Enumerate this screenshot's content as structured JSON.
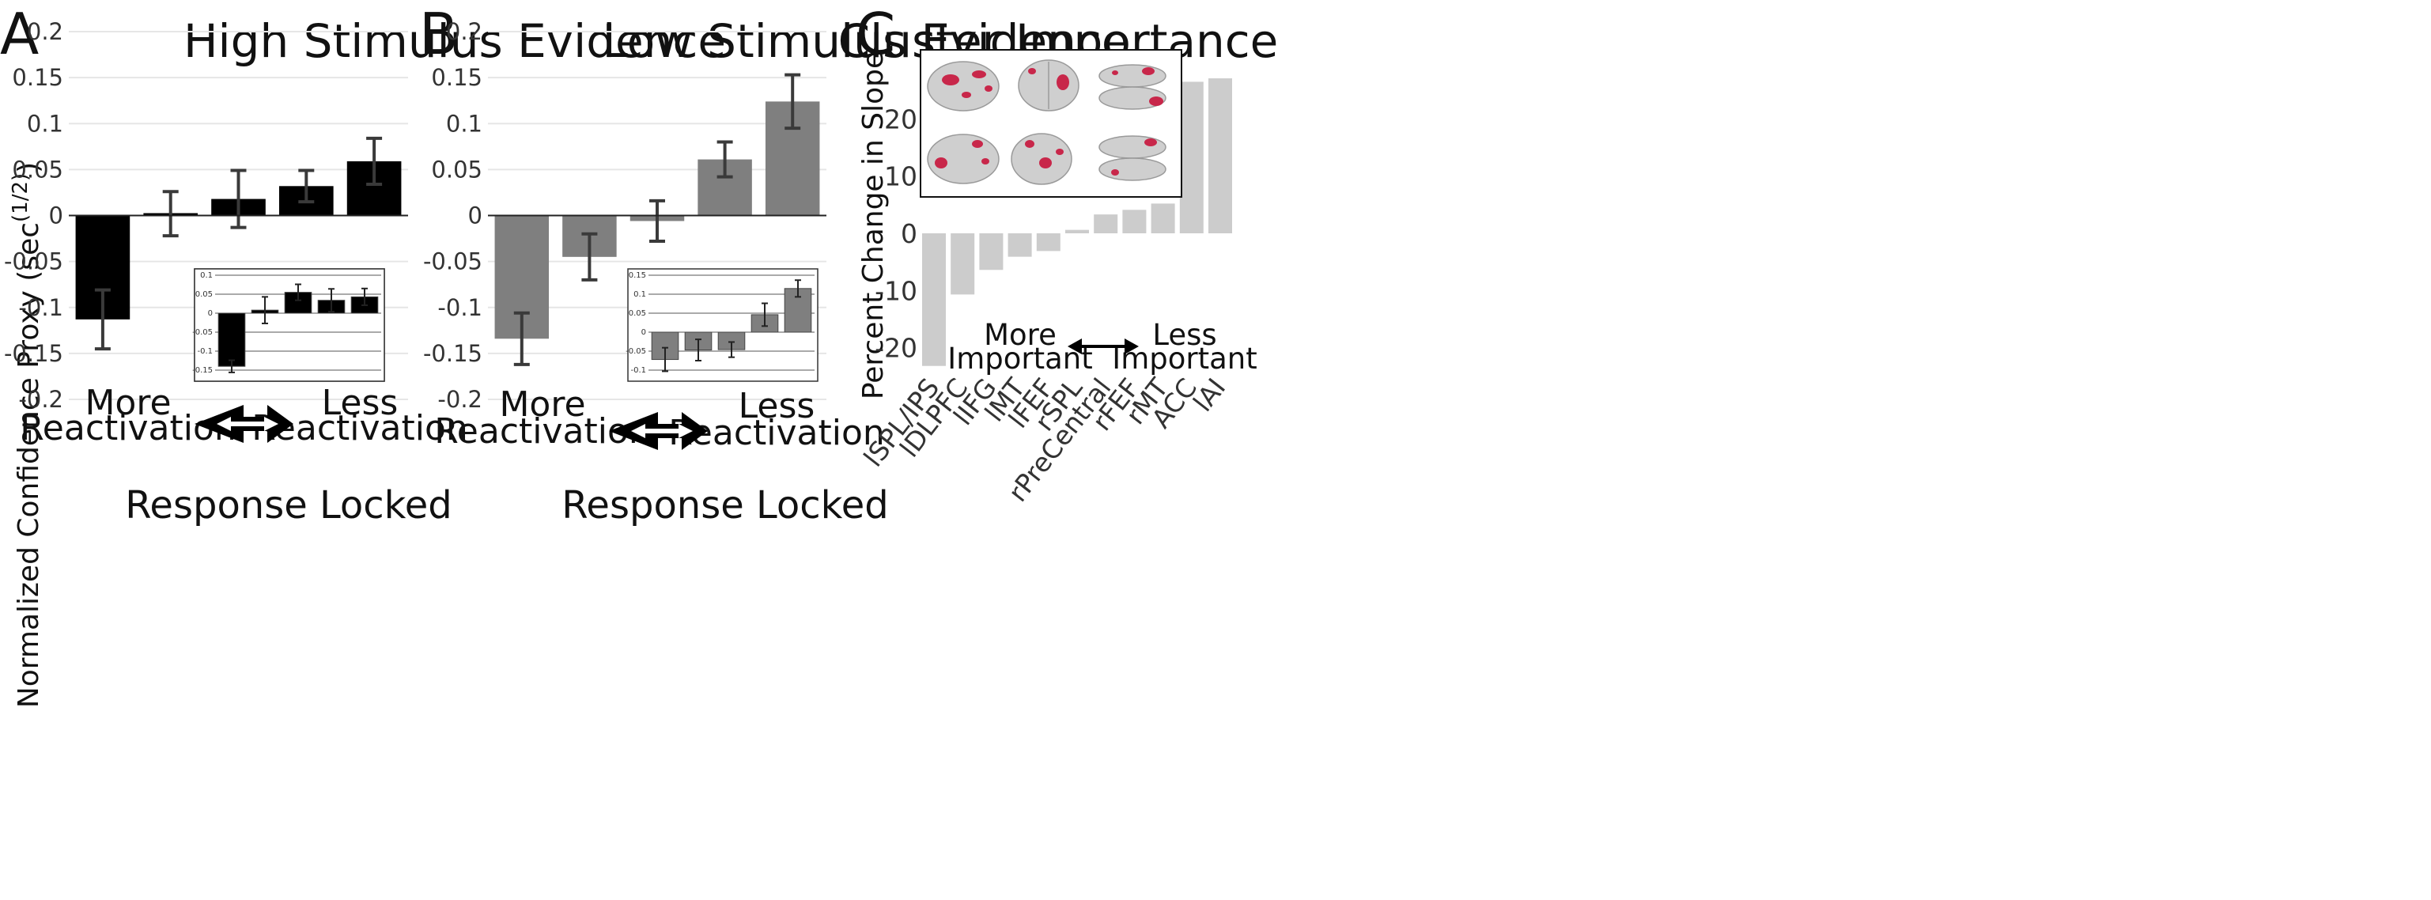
{
  "colors": {
    "panel_a_bars": "#000000",
    "panel_b_bars": "#7f7f7f",
    "panel_c_bars": "#cccccc",
    "brain_surface": "#c8c8c8",
    "cluster_highlight": "#c8274a",
    "error_bar": "#3a3a3a",
    "grid": "#e6e6e6"
  },
  "chart_data": [
    {
      "panel": "A",
      "type": "bar",
      "title": "High Stimulus Evidence",
      "ylabel": "Normalized Confidence Proxy (sec(1/2))",
      "ylabel_text": "Normalized Confidence Proxy (sec",
      "ylabel_exp": "(1/2)",
      "ylabel_close": ")",
      "ylim": [
        -0.2,
        0.2
      ],
      "yticks": [
        "0.2",
        "0.15",
        "0.1",
        "0.05",
        "0",
        "-0.05",
        "-0.1",
        "-0.15",
        "-0.2"
      ],
      "values": [
        -0.113,
        0.002,
        0.018,
        0.032,
        0.059
      ],
      "errors": [
        0.032,
        0.024,
        0.031,
        0.017,
        0.025
      ],
      "annotations": {
        "left_line1": "More",
        "left_line2": "Reactivation",
        "right_line1": "Less",
        "right_line2": "Reactivation"
      },
      "inset": {
        "title": "Response Locked",
        "ylim": [
          -0.15,
          0.1
        ],
        "yticks": [
          "0.1",
          "0.05",
          "0",
          "-0.05",
          "-0.1",
          "-0.15"
        ],
        "values": [
          -0.14,
          0.008,
          0.055,
          0.034,
          0.043
        ],
        "errors": [
          0.016,
          0.035,
          0.021,
          0.03,
          0.022
        ]
      }
    },
    {
      "panel": "B",
      "type": "bar",
      "title": "Low Stimulus Evidence",
      "ylim": [
        -0.2,
        0.2
      ],
      "yticks": [
        "0.2",
        "0.15",
        "0.1",
        "0.05",
        "0",
        "-0.05",
        "-0.1",
        "-0.15",
        "-0.2"
      ],
      "values": [
        -0.134,
        -0.045,
        -0.006,
        0.061,
        0.124
      ],
      "errors": [
        0.028,
        0.025,
        0.022,
        0.019,
        0.029
      ],
      "annotations": {
        "left_line1": "More",
        "left_line2": "Reactivation",
        "right_line1": "Less",
        "right_line2": "Reactivation"
      },
      "inset": {
        "title": "Response Locked",
        "ylim": [
          -0.1,
          0.15
        ],
        "yticks": [
          "0.15",
          "0.1",
          "0.05",
          "0",
          "-0.05",
          "-0.1"
        ],
        "values": [
          -0.072,
          -0.047,
          -0.046,
          0.046,
          0.115
        ],
        "errors": [
          0.031,
          0.028,
          0.02,
          0.03,
          0.022
        ]
      }
    },
    {
      "panel": "C",
      "type": "bar",
      "title": "Cluster Importance",
      "ylabel": "Percent Change in Slope",
      "ylim": [
        -25,
        35
      ],
      "yticks": [
        "20",
        "10",
        "0",
        "-10",
        "-20"
      ],
      "categories": [
        "lSPL/IPS",
        "lDLPFC",
        "lIFG",
        "lMT",
        "lFEF",
        "rSPL",
        "rPreCentral",
        "rFEF",
        "rMT",
        "ACC",
        "lAI"
      ],
      "values": [
        -23.2,
        -10.7,
        -6.4,
        -4.1,
        -3.1,
        0.6,
        3.3,
        4.1,
        5.2,
        26.5,
        27.1
      ],
      "annotations": {
        "left_line1": "More",
        "left_line2": "Important",
        "right_line1": "Less",
        "right_line2": "Important"
      }
    }
  ]
}
